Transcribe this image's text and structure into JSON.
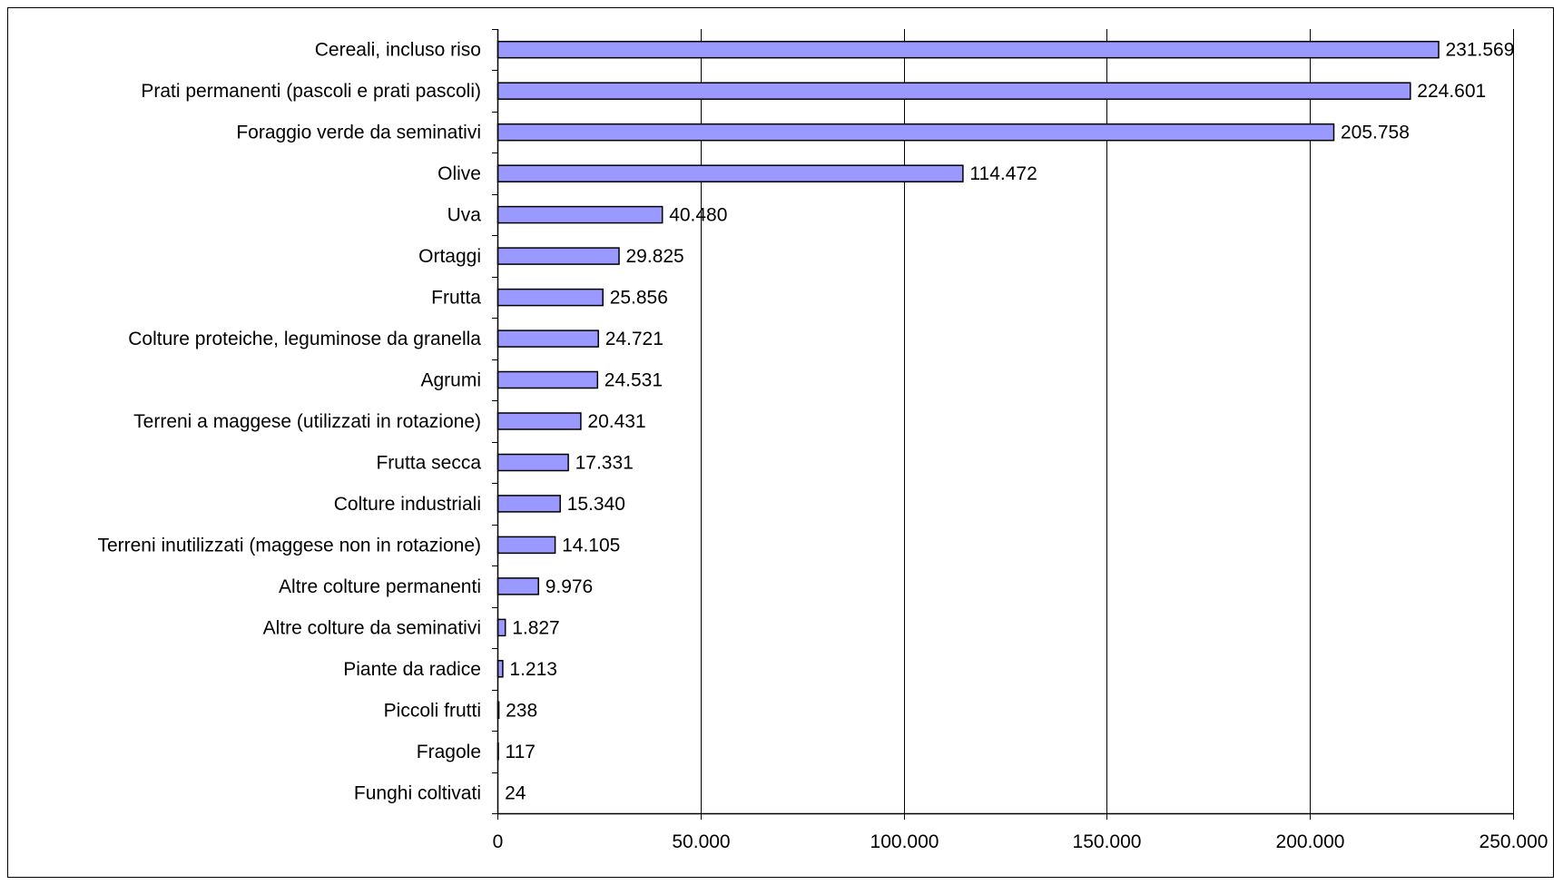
{
  "chart_data": {
    "type": "bar",
    "orientation": "horizontal",
    "title": "",
    "xlabel": "",
    "ylabel": "",
    "categories": [
      "Cereali, incluso riso",
      "Prati permanenti (pascoli e prati pascoli)",
      "Foraggio verde da seminativi",
      "Olive",
      "Uva",
      "Ortaggi",
      "Frutta",
      "Colture proteiche, leguminose da granella",
      "Agrumi",
      "Terreni a maggese (utilizzati in rotazione)",
      "Frutta secca",
      "Colture industriali",
      "Terreni inutilizzati (maggese non in rotazione)",
      "Altre colture permanenti",
      "Altre colture da seminativi",
      "Piante da radice",
      "Piccoli frutti",
      "Fragole",
      "Funghi coltivati"
    ],
    "values": [
      231569,
      224601,
      205758,
      114472,
      40480,
      29825,
      25856,
      24721,
      24531,
      20431,
      17331,
      15340,
      14105,
      9976,
      1827,
      1213,
      238,
      117,
      24
    ],
    "value_labels": [
      "231.569",
      "224.601",
      "205.758",
      "114.472",
      "40.480",
      "29.825",
      "25.856",
      "24.721",
      "24.531",
      "20.431",
      "17.331",
      "15.340",
      "14.105",
      "9.976",
      "1.827",
      "1.213",
      "238",
      "117",
      "24"
    ],
    "xlim": [
      0,
      250000
    ],
    "xticks": [
      0,
      50000,
      100000,
      150000,
      200000,
      250000
    ],
    "xtick_labels": [
      "0",
      "50.000",
      "100.000",
      "150.000",
      "200.000",
      "250.000"
    ],
    "grid": "vertical",
    "legend": "none",
    "colors": {
      "bar_fill": "#9999ff",
      "bar_stroke": "#000000",
      "grid": "#000000",
      "background": "#ffffff"
    }
  }
}
